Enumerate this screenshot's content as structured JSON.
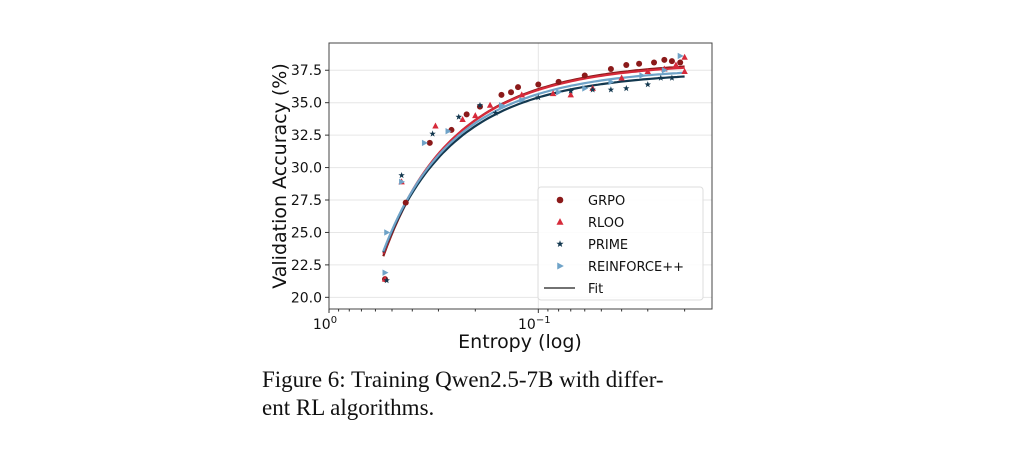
{
  "chart_data": {
    "type": "scatter",
    "title": "",
    "xlabel": "Entropy (log)",
    "ylabel": "Validation Accuracy (%)",
    "xscale": "log",
    "x_reversed": true,
    "xlim": [
      1.0,
      0.0148
    ],
    "ylim": [
      19.1,
      39.6
    ],
    "x_ticks": [
      {
        "base": "10",
        "exp": "0",
        "value": 1
      },
      {
        "base": "10",
        "exp": "−1",
        "value": 0.1
      }
    ],
    "y_ticks": [
      "20.0",
      "22.5",
      "25.0",
      "27.5",
      "30.0",
      "32.5",
      "35.0",
      "37.5"
    ],
    "grid": true,
    "legend_position": "lower-right",
    "series": [
      {
        "name": "GRPO",
        "marker": "circle",
        "color": "#8b1a1a",
        "points": [
          [
            0.54,
            21.4
          ],
          [
            0.43,
            27.3
          ],
          [
            0.33,
            31.9
          ],
          [
            0.26,
            32.9
          ],
          [
            0.22,
            34.1
          ],
          [
            0.19,
            34.7
          ],
          [
            0.15,
            35.6
          ],
          [
            0.135,
            35.8
          ],
          [
            0.125,
            36.2
          ],
          [
            0.1,
            36.4
          ],
          [
            0.08,
            36.6
          ],
          [
            0.06,
            37.1
          ],
          [
            0.045,
            37.6
          ],
          [
            0.038,
            37.9
          ],
          [
            0.033,
            38.0
          ],
          [
            0.028,
            38.1
          ],
          [
            0.025,
            38.3
          ],
          [
            0.023,
            38.2
          ],
          [
            0.021,
            38.1
          ]
        ],
        "fit": {
          "a": 20.5,
          "b": 58.7
        }
      },
      {
        "name": "RLOO",
        "marker": "triangle",
        "color": "#d62a3a",
        "points": [
          [
            0.54,
            21.4
          ],
          [
            0.45,
            28.9
          ],
          [
            0.31,
            33.2
          ],
          [
            0.23,
            33.7
          ],
          [
            0.2,
            34.0
          ],
          [
            0.17,
            34.8
          ],
          [
            0.12,
            35.6
          ],
          [
            0.085,
            35.7
          ],
          [
            0.07,
            35.6
          ],
          [
            0.055,
            36.1
          ],
          [
            0.04,
            36.9
          ],
          [
            0.03,
            37.4
          ],
          [
            0.025,
            37.6
          ],
          [
            0.022,
            37.9
          ],
          [
            0.02,
            38.5
          ],
          [
            0.02,
            37.4
          ]
        ],
        "fit": {
          "a": 20.1,
          "b": 58.2
        }
      },
      {
        "name": "PRIME",
        "marker": "star",
        "color": "#13384f",
        "points": [
          [
            0.53,
            21.3
          ],
          [
            0.45,
            29.4
          ],
          [
            0.32,
            32.6
          ],
          [
            0.24,
            33.9
          ],
          [
            0.19,
            34.8
          ],
          [
            0.16,
            34.2
          ],
          [
            0.1,
            35.4
          ],
          [
            0.07,
            35.9
          ],
          [
            0.055,
            36.0
          ],
          [
            0.045,
            36.0
          ],
          [
            0.038,
            36.1
          ],
          [
            0.03,
            36.4
          ],
          [
            0.026,
            36.9
          ],
          [
            0.023,
            36.9
          ]
        ],
        "fit": {
          "a": 19.0,
          "b": 56.4
        }
      },
      {
        "name": "REINFORCE++",
        "marker": "triangle-right",
        "color": "#6fa3c8",
        "points": [
          [
            0.54,
            21.9
          ],
          [
            0.53,
            25.0
          ],
          [
            0.45,
            28.9
          ],
          [
            0.35,
            31.9
          ],
          [
            0.27,
            32.8
          ],
          [
            0.15,
            34.8
          ],
          [
            0.12,
            35.2
          ],
          [
            0.08,
            35.8
          ],
          [
            0.06,
            36.1
          ],
          [
            0.045,
            36.6
          ],
          [
            0.032,
            37.1
          ],
          [
            0.025,
            37.5
          ],
          [
            0.021,
            38.6
          ]
        ],
        "fit": {
          "a": 19.3,
          "b": 57.0
        }
      }
    ],
    "fit_legend_label": "Fit",
    "fit_model": "acc = -a*exp(H) + b"
  },
  "caption": {
    "line1": "Figure 6: Training Qwen2.5-7B with differ-",
    "line2": "ent RL algorithms."
  }
}
